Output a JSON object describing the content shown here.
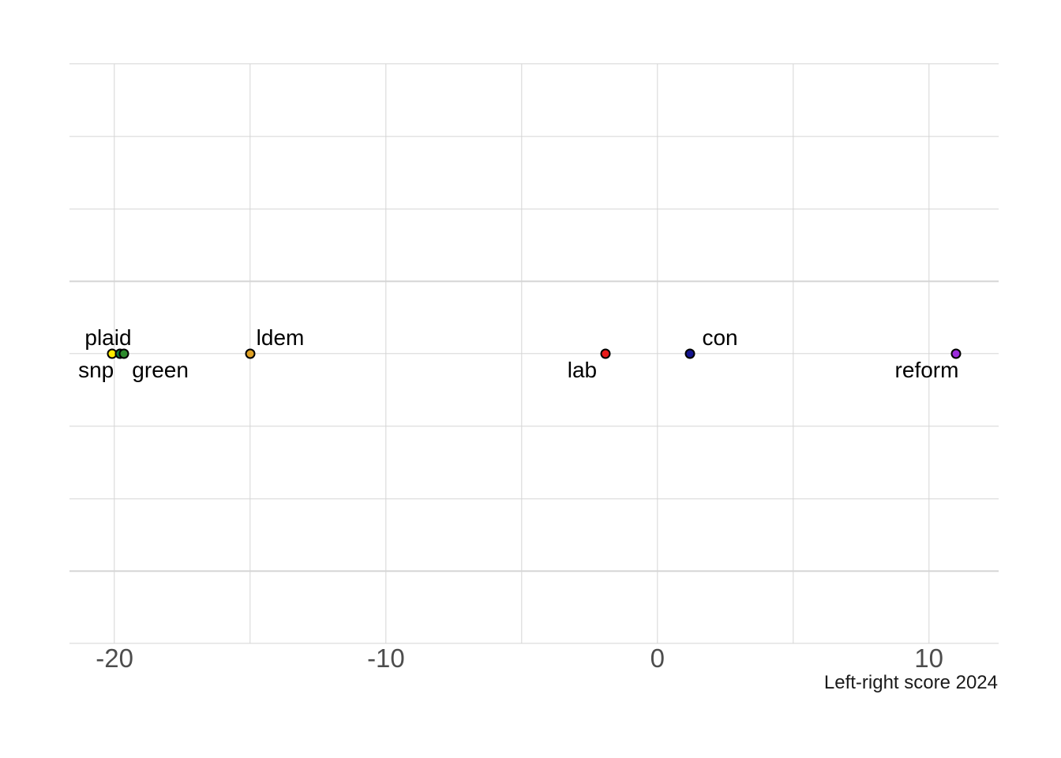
{
  "chart_data": {
    "type": "scatter",
    "title": "",
    "xlabel": "Left-right score 2024",
    "ylabel": "",
    "xlim": [
      -21.66,
      12.57
    ],
    "x_major_ticks": [
      -20,
      -10,
      0,
      10
    ],
    "x_minor_ticks": [
      -15,
      -5,
      5
    ],
    "n_horizontal_gridlines": 9,
    "grid": true,
    "legend": false,
    "background": "#ffffff",
    "grid_color": "#d5d5d5",
    "point_outline_color": "#000000",
    "tick_label_color": "#4d4d4d",
    "axis_title_color": "#1a1a1a",
    "points": [
      {
        "party": "snp",
        "x": -20.1,
        "color": "#ffeb00",
        "label_side": "below",
        "label_dx": -20
      },
      {
        "party": "plaid",
        "x": -19.8,
        "color": "#0e7a3c",
        "label_side": "above",
        "label_dx": -15
      },
      {
        "party": "green",
        "x": -19.65,
        "color": "#2e8b2e",
        "label_side": "below",
        "label_dx": 46
      },
      {
        "party": "ldem",
        "x": -15.0,
        "color": "#dfa125",
        "label_side": "above",
        "label_dx": 38
      },
      {
        "party": "lab",
        "x": -1.9,
        "color": "#ea1a1a",
        "label_side": "below",
        "label_dx": -30
      },
      {
        "party": "con",
        "x": 1.2,
        "color": "#14148e",
        "label_side": "above",
        "label_dx": 38
      },
      {
        "party": "reform",
        "x": 11.0,
        "color": "#9c2bdd",
        "label_side": "below",
        "label_dx": -37
      }
    ]
  }
}
